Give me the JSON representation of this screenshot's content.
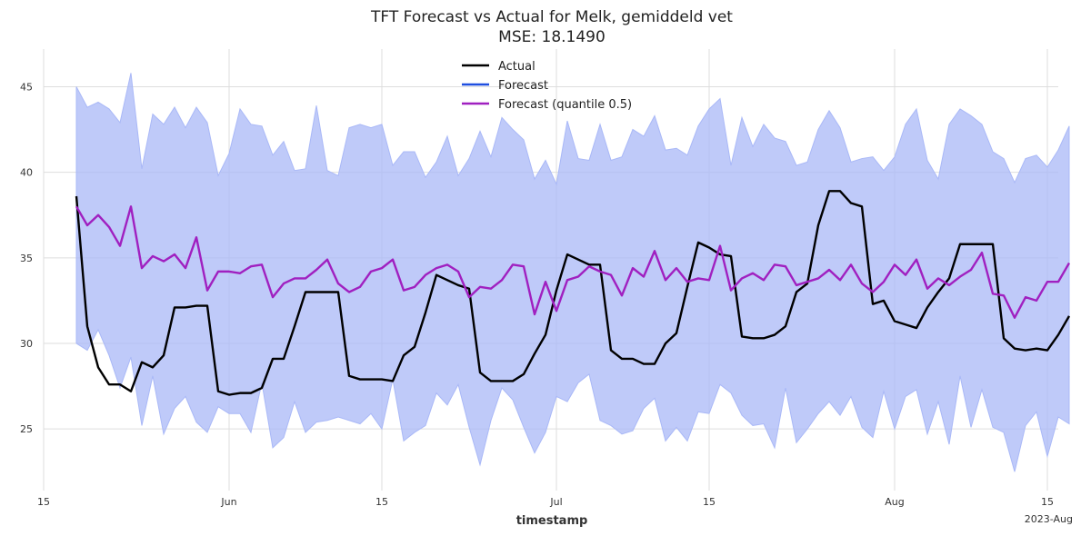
{
  "chart_data": {
    "type": "line",
    "title": "TFT Forecast vs Actual for Melk, gemiddeld vet",
    "subtitle": "MSE: 18.1490",
    "xlabel": "timestamp",
    "ylabel": "",
    "x_start": "2023-05-18",
    "x_step_days": 1,
    "xlim": [
      "2023-05-15",
      "2023-08-16"
    ],
    "ylim": [
      21.4,
      47.2
    ],
    "x_ticks": [
      {
        "date": "2023-05-15",
        "label": "15"
      },
      {
        "date": "2023-06-01",
        "label": "Jun"
      },
      {
        "date": "2023-06-15",
        "label": "15"
      },
      {
        "date": "2023-07-01",
        "label": "Jul"
      },
      {
        "date": "2023-07-15",
        "label": "15"
      },
      {
        "date": "2023-08-01",
        "label": "Aug"
      },
      {
        "date": "2023-08-15",
        "label": "15"
      }
    ],
    "x_offset_label": "2023-Aug",
    "y_ticks": [
      25,
      30,
      35,
      40,
      45
    ],
    "grid": true,
    "legend_position": "top-center",
    "series": [
      {
        "name": "Actual",
        "color": "#000000",
        "values": [
          38.6,
          31.0,
          28.6,
          27.6,
          27.6,
          27.2,
          28.9,
          28.6,
          29.3,
          32.1,
          32.1,
          32.2,
          32.2,
          27.2,
          27.0,
          27.1,
          27.1,
          27.4,
          29.1,
          29.1,
          31.0,
          33.0,
          33.0,
          33.0,
          33.0,
          28.1,
          27.9,
          27.9,
          27.9,
          27.8,
          29.3,
          29.8,
          31.8,
          34.0,
          33.7,
          33.4,
          33.2,
          28.3,
          27.8,
          27.8,
          27.8,
          28.2,
          29.4,
          30.5,
          33.1,
          35.2,
          34.9,
          34.6,
          34.6,
          29.6,
          29.1,
          29.1,
          28.8,
          28.8,
          30.0,
          30.6,
          33.3,
          35.9,
          35.6,
          35.2,
          35.1,
          30.4,
          30.3,
          30.3,
          30.5,
          31.0,
          33.0,
          33.5,
          36.9,
          38.9,
          38.9,
          38.2,
          38.0,
          32.3,
          32.5,
          31.3,
          31.1,
          30.9,
          32.1,
          33.0,
          33.8,
          35.8,
          35.8,
          35.8,
          35.8,
          30.3,
          29.7,
          29.6,
          29.7,
          29.6,
          30.5,
          31.6
        ]
      },
      {
        "name": "Forecast",
        "color": "#1f4fe0",
        "band_color": "#a9b8f7",
        "lower": [
          30.0,
          29.6,
          30.8,
          29.3,
          27.4,
          29.2,
          25.2,
          28.1,
          24.7,
          26.2,
          26.9,
          25.4,
          24.8,
          26.3,
          25.9,
          25.9,
          24.8,
          27.7,
          23.9,
          24.5,
          26.6,
          24.8,
          25.4,
          25.5,
          25.7,
          25.5,
          25.3,
          25.9,
          25.0,
          27.9,
          24.3,
          24.8,
          25.2,
          27.1,
          26.4,
          27.6,
          25.1,
          22.9,
          25.5,
          27.4,
          26.7,
          25.1,
          23.6,
          24.8,
          26.9,
          26.6,
          27.7,
          28.2,
          25.5,
          25.2,
          24.7,
          24.9,
          26.2,
          26.8,
          24.3,
          25.1,
          24.3,
          26.0,
          25.9,
          27.6,
          27.1,
          25.8,
          25.2,
          25.3,
          23.9,
          27.4,
          24.2,
          25.0,
          25.9,
          26.6,
          25.8,
          26.9,
          25.1,
          24.5,
          27.2,
          25.0,
          26.9,
          27.3,
          24.7,
          26.6,
          24.1,
          28.1,
          25.1,
          27.3,
          25.1,
          24.8,
          22.5,
          25.2,
          26.0,
          23.4,
          25.7,
          25.3
        ],
        "upper": [
          45.0,
          43.8,
          44.1,
          43.7,
          42.9,
          45.8,
          40.2,
          43.4,
          42.8,
          43.8,
          42.6,
          43.8,
          42.9,
          39.8,
          41.1,
          43.7,
          42.8,
          42.7,
          41.0,
          41.8,
          40.1,
          40.2,
          43.9,
          40.1,
          39.8,
          42.6,
          42.8,
          42.6,
          42.8,
          40.4,
          41.2,
          41.2,
          39.7,
          40.6,
          42.1,
          39.8,
          40.8,
          42.4,
          40.9,
          43.2,
          42.5,
          41.9,
          39.6,
          40.7,
          39.3,
          43.0,
          40.8,
          40.7,
          42.8,
          40.7,
          40.9,
          42.5,
          42.1,
          43.3,
          41.3,
          41.4,
          41.0,
          42.7,
          43.7,
          44.3,
          40.4,
          43.2,
          41.5,
          42.8,
          42.0,
          41.8,
          40.4,
          40.6,
          42.5,
          43.6,
          42.6,
          40.6,
          40.8,
          40.9,
          40.1,
          40.9,
          42.8,
          43.7,
          40.7,
          39.6,
          42.8,
          43.7,
          43.3,
          42.8,
          41.2,
          40.8,
          39.4,
          40.8,
          41.0,
          40.3,
          41.3,
          42.7
        ]
      },
      {
        "name": "Forecast (quantile 0.5)",
        "color": "#a020c0",
        "values": [
          38.0,
          36.9,
          37.5,
          36.8,
          35.7,
          38.0,
          34.4,
          35.1,
          34.8,
          35.2,
          34.4,
          36.2,
          33.1,
          34.2,
          34.2,
          34.1,
          34.5,
          34.6,
          32.7,
          33.5,
          33.8,
          33.8,
          34.3,
          34.9,
          33.5,
          33.0,
          33.3,
          34.2,
          34.4,
          34.9,
          33.1,
          33.3,
          34.0,
          34.4,
          34.6,
          34.2,
          32.7,
          33.3,
          33.2,
          33.7,
          34.6,
          34.5,
          31.7,
          33.6,
          31.9,
          33.7,
          33.9,
          34.5,
          34.2,
          34.0,
          32.8,
          34.4,
          33.9,
          35.4,
          33.7,
          34.4,
          33.6,
          33.8,
          33.7,
          35.7,
          33.1,
          33.8,
          34.1,
          33.7,
          34.6,
          34.5,
          33.4,
          33.6,
          33.8,
          34.3,
          33.7,
          34.6,
          33.5,
          33.0,
          33.6,
          34.6,
          34.0,
          34.9,
          33.2,
          33.8,
          33.4,
          33.9,
          34.3,
          35.3,
          32.9,
          32.8,
          31.5,
          32.7,
          32.5,
          33.6,
          33.6,
          34.7
        ]
      }
    ]
  }
}
